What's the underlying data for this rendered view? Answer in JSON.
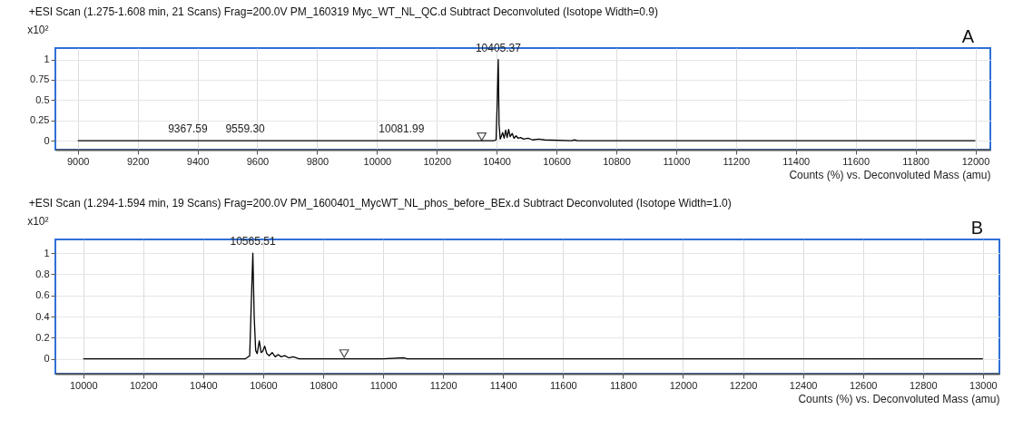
{
  "chart_data": [
    {
      "type": "line",
      "title": "+ESI Scan (1.275-1.608 min, 21 Scans) Frag=200.0V PM_160319 Myc_WT_NL_QC.d  Subtract Deconvoluted (Isotope Width=0.9)",
      "xlabel": "Counts (%) vs. Deconvoluted Mass (amu)",
      "ylabel": "x10²",
      "xlim": [
        8925,
        12050
      ],
      "xticks": [
        9000,
        9200,
        9400,
        9600,
        9800,
        10000,
        10200,
        10400,
        10600,
        10800,
        11000,
        11200,
        11400,
        11600,
        11800,
        12000
      ],
      "ylim": [
        -0.11,
        1.14
      ],
      "yticks": [
        0,
        0.25,
        0.5,
        0.75,
        1
      ],
      "grid": true,
      "series": [
        {
          "color": "#000000",
          "x": [
            9000,
            10390,
            10398,
            10402,
            10405.37,
            10408,
            10412,
            10420,
            10425,
            10430,
            10435,
            10440,
            10445,
            10452,
            10458,
            10465,
            10472,
            10480,
            10490,
            10505,
            10520,
            10540,
            10560,
            10650,
            10660,
            10670,
            12000
          ],
          "values": [
            0,
            0,
            0.01,
            0.5,
            1,
            0.2,
            0.02,
            0.1,
            0.03,
            0.13,
            0.04,
            0.14,
            0.05,
            0.09,
            0.03,
            0.06,
            0.03,
            0.04,
            0.02,
            0.03,
            0.01,
            0.02,
            0.01,
            0,
            0.01,
            0,
            0
          ]
        },
        {
          "type": "scatter",
          "marker": "triangle",
          "color": "#000000",
          "x": [
            10350
          ],
          "values": [
            0.05
          ]
        }
      ],
      "annotations": [
        {
          "text": "10405.37",
          "x": 10405.37,
          "y": 1
        },
        {
          "text": "9367.59",
          "x": 9367.59,
          "y": 0
        },
        {
          "text": "9559.30",
          "x": 9559.3,
          "y": 0
        },
        {
          "text": "10081.99",
          "x": 10081.99,
          "y": 0
        },
        "A"
      ]
    },
    {
      "type": "line",
      "title": "+ESI Scan (1.294-1.594 min, 19 Scans) Frag=200.0V PM_1600401_MycWT_NL_phos_before_BEx.d  Subtract Deconvoluted (Isotope Width=1.0)",
      "xlabel": "Counts (%) vs. Deconvoluted Mass (amu)",
      "ylabel": "x10²",
      "xlim": [
        9907,
        13055
      ],
      "xticks": [
        10000,
        10200,
        10400,
        10600,
        10800,
        11000,
        11200,
        11400,
        11600,
        11800,
        12000,
        12200,
        12400,
        12600,
        12800,
        13000
      ],
      "ylim": [
        -0.14,
        1.13
      ],
      "yticks": [
        0,
        0.2,
        0.4,
        0.6,
        0.8,
        1
      ],
      "grid": true,
      "series": [
        {
          "color": "#000000",
          "x": [
            10000,
            10540,
            10555,
            10560,
            10565.51,
            10570,
            10575,
            10580,
            10587,
            10593,
            10598,
            10605,
            10612,
            10620,
            10630,
            10640,
            10650,
            10660,
            10672,
            10685,
            10700,
            10720,
            11000,
            11070,
            11080,
            13000
          ],
          "values": [
            0,
            0,
            0.03,
            0.5,
            1,
            0.4,
            0.08,
            0.05,
            0.17,
            0.06,
            0.07,
            0.12,
            0.05,
            0.03,
            0.06,
            0.02,
            0.04,
            0.02,
            0.03,
            0.01,
            0.02,
            0,
            0,
            0.01,
            0,
            0
          ]
        },
        {
          "type": "scatter",
          "marker": "triangle",
          "color": "#000000",
          "x": [
            10870
          ],
          "values": [
            0.05
          ]
        }
      ],
      "annotations": [
        {
          "text": "10565.51",
          "x": 10565.51,
          "y": 1
        },
        "B"
      ]
    }
  ]
}
